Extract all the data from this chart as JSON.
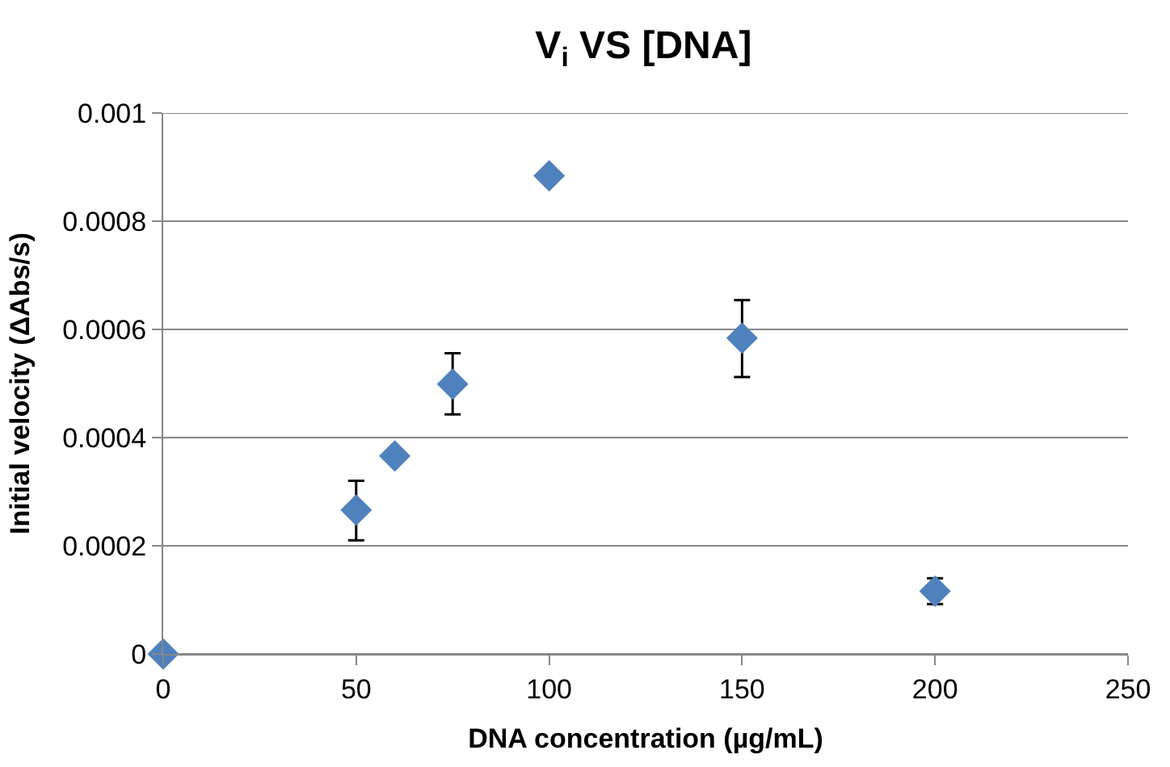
{
  "chart_data": {
    "type": "scatter",
    "title": "V$_{i}$ VS [DNA]",
    "xlabel": "DNA concentration (µg/mL)",
    "ylabel": "Initial velocity (ΔAbs/s)",
    "x": [
      0,
      50,
      60,
      75,
      100,
      150,
      200
    ],
    "series": [
      {
        "color": "#4f81bd",
        "values": [
          0,
          0.000266,
          0.000366,
          0.000499,
          0.000884,
          0.000584,
          0.000116
        ],
        "errors": [
          null,
          [
            0.00021,
            0.00032
          ],
          null,
          [
            0.000443,
            0.000556
          ],
          null,
          [
            0.000512,
            0.000654
          ],
          [
            9.2e-05,
            0.00014
          ]
        ]
      }
    ],
    "xlim": [
      0,
      250
    ],
    "xticks": [
      0,
      50,
      100,
      150,
      200,
      250
    ],
    "ylim": [
      0,
      0.001
    ],
    "yticks": [
      0,
      0.0002,
      0.0004,
      0.0006,
      0.0008,
      0.001
    ],
    "grid": "y",
    "marker": "diamond"
  }
}
